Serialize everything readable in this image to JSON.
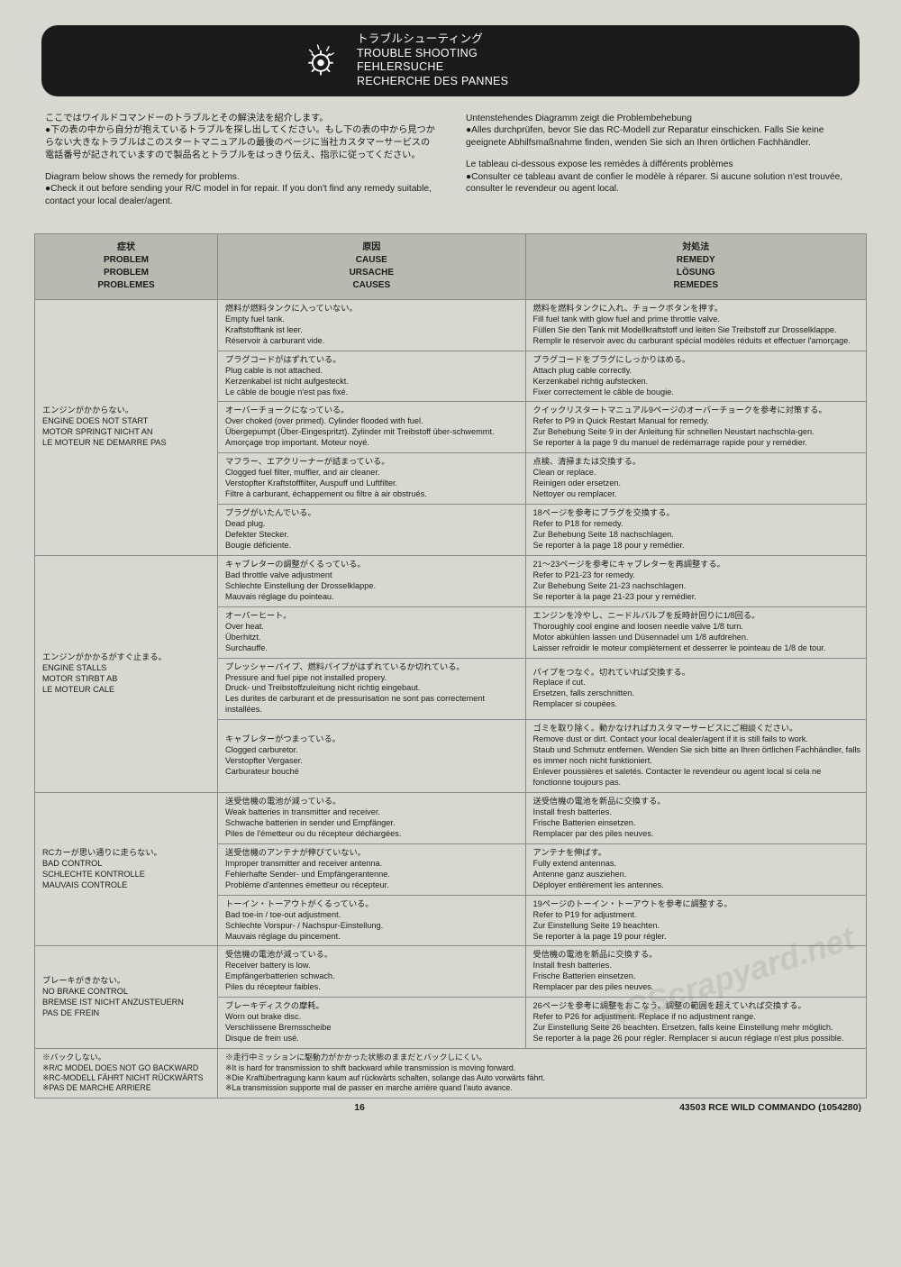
{
  "header": {
    "line1": "トラブルシューティング",
    "line2": "TROUBLE SHOOTING",
    "line3": "FEHLERSUCHE",
    "line4": "RECHERCHE DES PANNES"
  },
  "intro": {
    "left_a": "ここではワイルドコマンドーのトラブルとその解決法を紹介します。\n●下の表の中から自分が抱えているトラブルを探し出してください。もし下の表の中から見つからない大きなトラブルはこのスタートマニュアルの最後のページに当社カスタマーサービスの電話番号が記されていますので製品名とトラブルをはっきり伝え、指示に従ってください。",
    "left_b": "Diagram below shows the remedy for problems.\n●Check it out before sending your R/C model in for repair. If you don't find any remedy suitable, contact your local dealer/agent.",
    "right_a": "Untenstehendes Diagramm zeigt die Problembehebung\n●Alles durchprüfen, bevor Sie das RC-Modell zur Reparatur einschicken. Falls Sie keine geeignete Abhilfsmaßnahme finden, wenden Sie sich an Ihren örtlichen Fachhändler.",
    "right_b": "Le tableau ci-dessous expose les remèdes à différents problèmes\n●Consulter ce tableau avant de confier le modèle à réparer. Si aucune solution n'est trouvée, consulter le revendeur ou agent local."
  },
  "columns": {
    "c1": "症状\nPROBLEM\nPROBLEM\nPROBLEMES",
    "c2": "原因\nCAUSE\nURSACHE\nCAUSES",
    "c3": "対処法\nREMEDY\nLÖSUNG\nREMEDES"
  },
  "groups": [
    {
      "problem": "エンジンがかからない。\nENGINE DOES NOT START\nMOTOR SPRINGT NICHT AN\nLE MOTEUR NE DEMARRE PAS",
      "rows": [
        {
          "cause": "燃料が燃料タンクに入っていない。\nEmpty fuel tank.\nKraftstofftank ist leer.\nRéservoir à carburant vide.",
          "remedy": "燃料を燃料タンクに入れ、チョークボタンを押す。\nFill fuel tank with glow fuel and prime throttle valve.\nFüllen Sie den Tank mit Modellkraftstoff und leiten Sie Treibstoff zur Drosselklappe.\nRemplir le réservoir avec du carburant spécial modèles réduits et effectuer l'amorçage."
        },
        {
          "cause": "プラグコードがはずれている。\nPlug cable is not attached.\nKerzenkabel ist nicht aufgesteckt.\nLe câble de bougie n'est pas fixé.",
          "remedy": "プラグコードをプラグにしっかりはめる。\nAttach plug cable correctly.\nKerzenkabel richtig aufstecken.\nFixer correctement le câble de bougie."
        },
        {
          "cause": "オーバーチョークになっている。\nOver choked (over primed). Cylinder flooded with fuel.\nÜbergepumpt (Über-Eingespritzt). Zylinder mit Treibstoff über-schwemmt.\nAmorçage trop important. Moteur noyé.",
          "remedy": "クイックリスタートマニュアル9ページのオーバーチョークを参考に対策する。\nRefer to P9 in Quick Restart Manual for remedy.\nZur Behebung Seite 9 in der Anleitung für schnellen Neustart nachschla-gen.\nSe reporter à la page 9 du manuel de redémarrage rapide pour y remédier."
        },
        {
          "cause": "マフラー、エアクリーナーが詰まっている。\nClogged fuel filter, muffler, and air cleaner.\nVerstopfter Kraftstofffilter, Auspuff und Luftfilter.\nFiltre à carburant, échappement ou filtre à air obstrués.",
          "remedy": "点検、清掃または交換する。\nClean or replace.\nReinigen oder ersetzen.\nNettoyer ou remplacer."
        },
        {
          "cause": "プラグがいたんでいる。\nDead plug.\nDefekter Stecker.\nBougie déficiente.",
          "remedy": "18ページを参考にプラグを交換する。\nRefer to P18 for remedy.\nZur Behebung Seite 18 nachschlagen.\nSe reporter à la page 18 pour y remédier."
        }
      ]
    },
    {
      "problem": "エンジンがかかるがすぐ止まる。\nENGINE STALLS\nMOTOR STIRBT AB\nLE MOTEUR CALE",
      "rows": [
        {
          "cause": "キャブレターの調整がくるっている。\nBad throttle valve adjustment\nSchlechte Einstellung der Drosselklappe.\nMauvais réglage du pointeau.",
          "remedy": "21～23ページを参考にキャブレターを再調整する。\nRefer to P21-23 for remedy.\nZur Behebung Seite 21-23 nachschlagen.\nSe reporter à la page 21-23 pour y remédier."
        },
        {
          "cause": "オーバーヒート。\nOver heat.\nÜberhitzt.\nSurchauffe.",
          "remedy": "エンジンを冷やし、ニードルバルブを反時計回りに1/8回る。\nThoroughly cool engine and loosen needle valve 1/8 turn.\nMotor abkühlen lassen und Düsennadel um 1/8 aufdrehen.\nLaisser refroidir le moteur complètement et desserrer le pointeau de 1/8 de tour."
        },
        {
          "cause": "プレッシャーパイプ、燃料パイプがはずれているか切れている。\nPressure and fuel pipe not installed propery.\nDruck- und Treibstoffzuleitung nicht richtig eingebaut.\nLes durites de carburant et de pressurisation ne sont pas correctement installées.",
          "remedy": "パイプをつなぐ。切れていれば交換する。\nReplace if cut.\nErsetzen, falls zerschnitten.\nRemplacer si coupées."
        },
        {
          "cause": "キャブレターがつまっている。\nClogged carburetor.\nVerstopfter Vergaser.\nCarburateur bouché",
          "remedy": "ゴミを取り除く。動かなければカスタマーサービスにご相談ください。\nRemove dust or dirt. Contact your local dealer/agent if it is still fails to work.\nStaub und Schmutz entfernen. Wenden Sie sich bitte an Ihren örtlichen Fachhändler, falls es immer noch nicht funktioniert.\nEnlever poussières et saletés. Contacter le revendeur ou agent local si cela ne fonctionne toujours pas."
        }
      ]
    },
    {
      "problem": "RCカーが思い通りに走らない。\nBAD CONTROL\nSCHLECHTE KONTROLLE\nMAUVAIS CONTROLE",
      "rows": [
        {
          "cause": "送受信機の電池が減っている。\nWeak batteries in transmitter and receiver.\nSchwache batterien in sender und Empfänger.\nPiles de l'émetteur ou du récepteur déchargées.",
          "remedy": "送受信機の電池を新品に交換する。\nInstall fresh batteries.\nFrische Batterien einsetzen.\nRemplacer par des piles neuves."
        },
        {
          "cause": "送受信機のアンテナが伸びていない。\nImproper transmitter and receiver antenna.\nFehlerhafte Sender- und Empfängerantenne.\nProblème d'antennes émetteur ou récepteur.",
          "remedy": "アンテナを伸ばす。\nFully extend antennas.\nAntenne ganz ausziehen.\nDéployer entièrement les antennes."
        },
        {
          "cause": "トーイン・トーアウトがくるっている。\nBad toe-in / toe-out adjustment.\nSchlechte Vorspur- / Nachspur-Einstellung.\nMauvais réglage du pincement.",
          "remedy": "19ページのトーイン・トーアウトを参考に調整する。\nRefer to P19 for adjustment.\nZur Einstellung Seite 19 beachten.\nSe reporter à la page 19 pour régler."
        }
      ]
    },
    {
      "problem": "ブレーキがきかない。\nNO BRAKE CONTROL\nBREMSE IST NICHT ANZUSTEUERN\nPAS DE FREIN",
      "rows": [
        {
          "cause": "受信機の電池が減っている。\nReceiver battery is low.\nEmpfängerbatterien schwach.\nPiles du récepteur faibles.",
          "remedy": "受信機の電池を新品に交換する。\nInstall fresh batteries.\nFrische Batterien einsetzen.\nRemplacer par des piles neuves."
        },
        {
          "cause": "ブレーキディスクの摩耗。\nWorn out brake disc.\nVerschlissene Bremsscheibe\nDisque de frein usé.",
          "remedy": "26ページを参考に調整をおこなう。調整の範囲を超えていれば交換する。\nRefer to P26 for adjustment. Replace if no adjustment range.\nZur Einstellung Seite 26 beachten. Ersetzen, falls keine Einstellung mehr möglich.\nSe reporter à la page 26 pour régler. Remplacer si aucun réglage n'est plus possible."
        }
      ]
    }
  ],
  "note": {
    "problem": "※バックしない。\n※R/C MODEL DOES NOT GO BACKWARD\n※RC-MODELL FÄHRT NICHT RÜCKWÄRTS\n※PAS DE MARCHE ARRIERE",
    "remedy": "※走行中ミッションに駆動力がかかった状態のままだとバックしにくい。\n※It is hard for transmission to shift backward while transmission is moving forward.\n※Die Kraftübertragung kann kaum auf rückwärts schalten, solange das Auto vorwärts fährt.\n※La transmission supporte mal de passer en marche arrière quand l'auto avance."
  },
  "footer": {
    "page": "16",
    "code": "43503 RCE WILD COMMANDO (1054280)"
  },
  "watermark": "RCScrapyard.net"
}
